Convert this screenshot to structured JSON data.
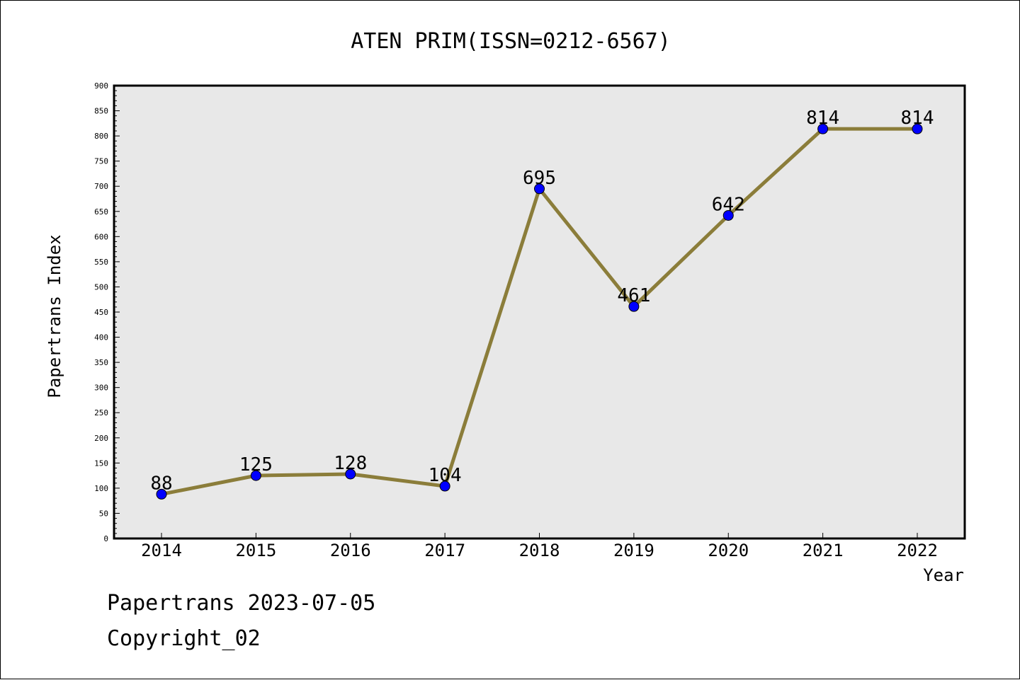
{
  "chart_data": {
    "type": "line",
    "title": "ATEN PRIM(ISSN=0212-6567)",
    "xlabel": "Year",
    "ylabel": "Papertrans Index",
    "categories": [
      "2014",
      "2015",
      "2016",
      "2017",
      "2018",
      "2019",
      "2020",
      "2021",
      "2022"
    ],
    "series": [
      {
        "values": [
          88,
          125,
          128,
          104,
          695,
          461,
          642,
          814,
          814
        ]
      }
    ],
    "data_labels": [
      "88",
      "125",
      "128",
      "104",
      "695",
      "461",
      "642",
      "814",
      "814"
    ],
    "ylim": [
      0,
      900
    ],
    "yticks": [
      0,
      50,
      100,
      150,
      200,
      250,
      300,
      350,
      400,
      450,
      500,
      550,
      600,
      650,
      700,
      750,
      800,
      850,
      900
    ],
    "ytick_labels": [
      "0",
      "50",
      "100",
      "150",
      "200",
      "250",
      "300",
      "350",
      "400",
      "450",
      "500",
      "550",
      "600",
      "650",
      "700",
      "750",
      "800",
      "850",
      "900"
    ],
    "grid": false,
    "legend": "none",
    "colors": {
      "plot_background": "#e8e8e8",
      "line": "#8b7d3a",
      "marker": "#0000ff",
      "marker_edge": "#000000"
    }
  },
  "footer": {
    "line1": "Papertrans 2023-07-05",
    "line2": "Copyright_02"
  }
}
